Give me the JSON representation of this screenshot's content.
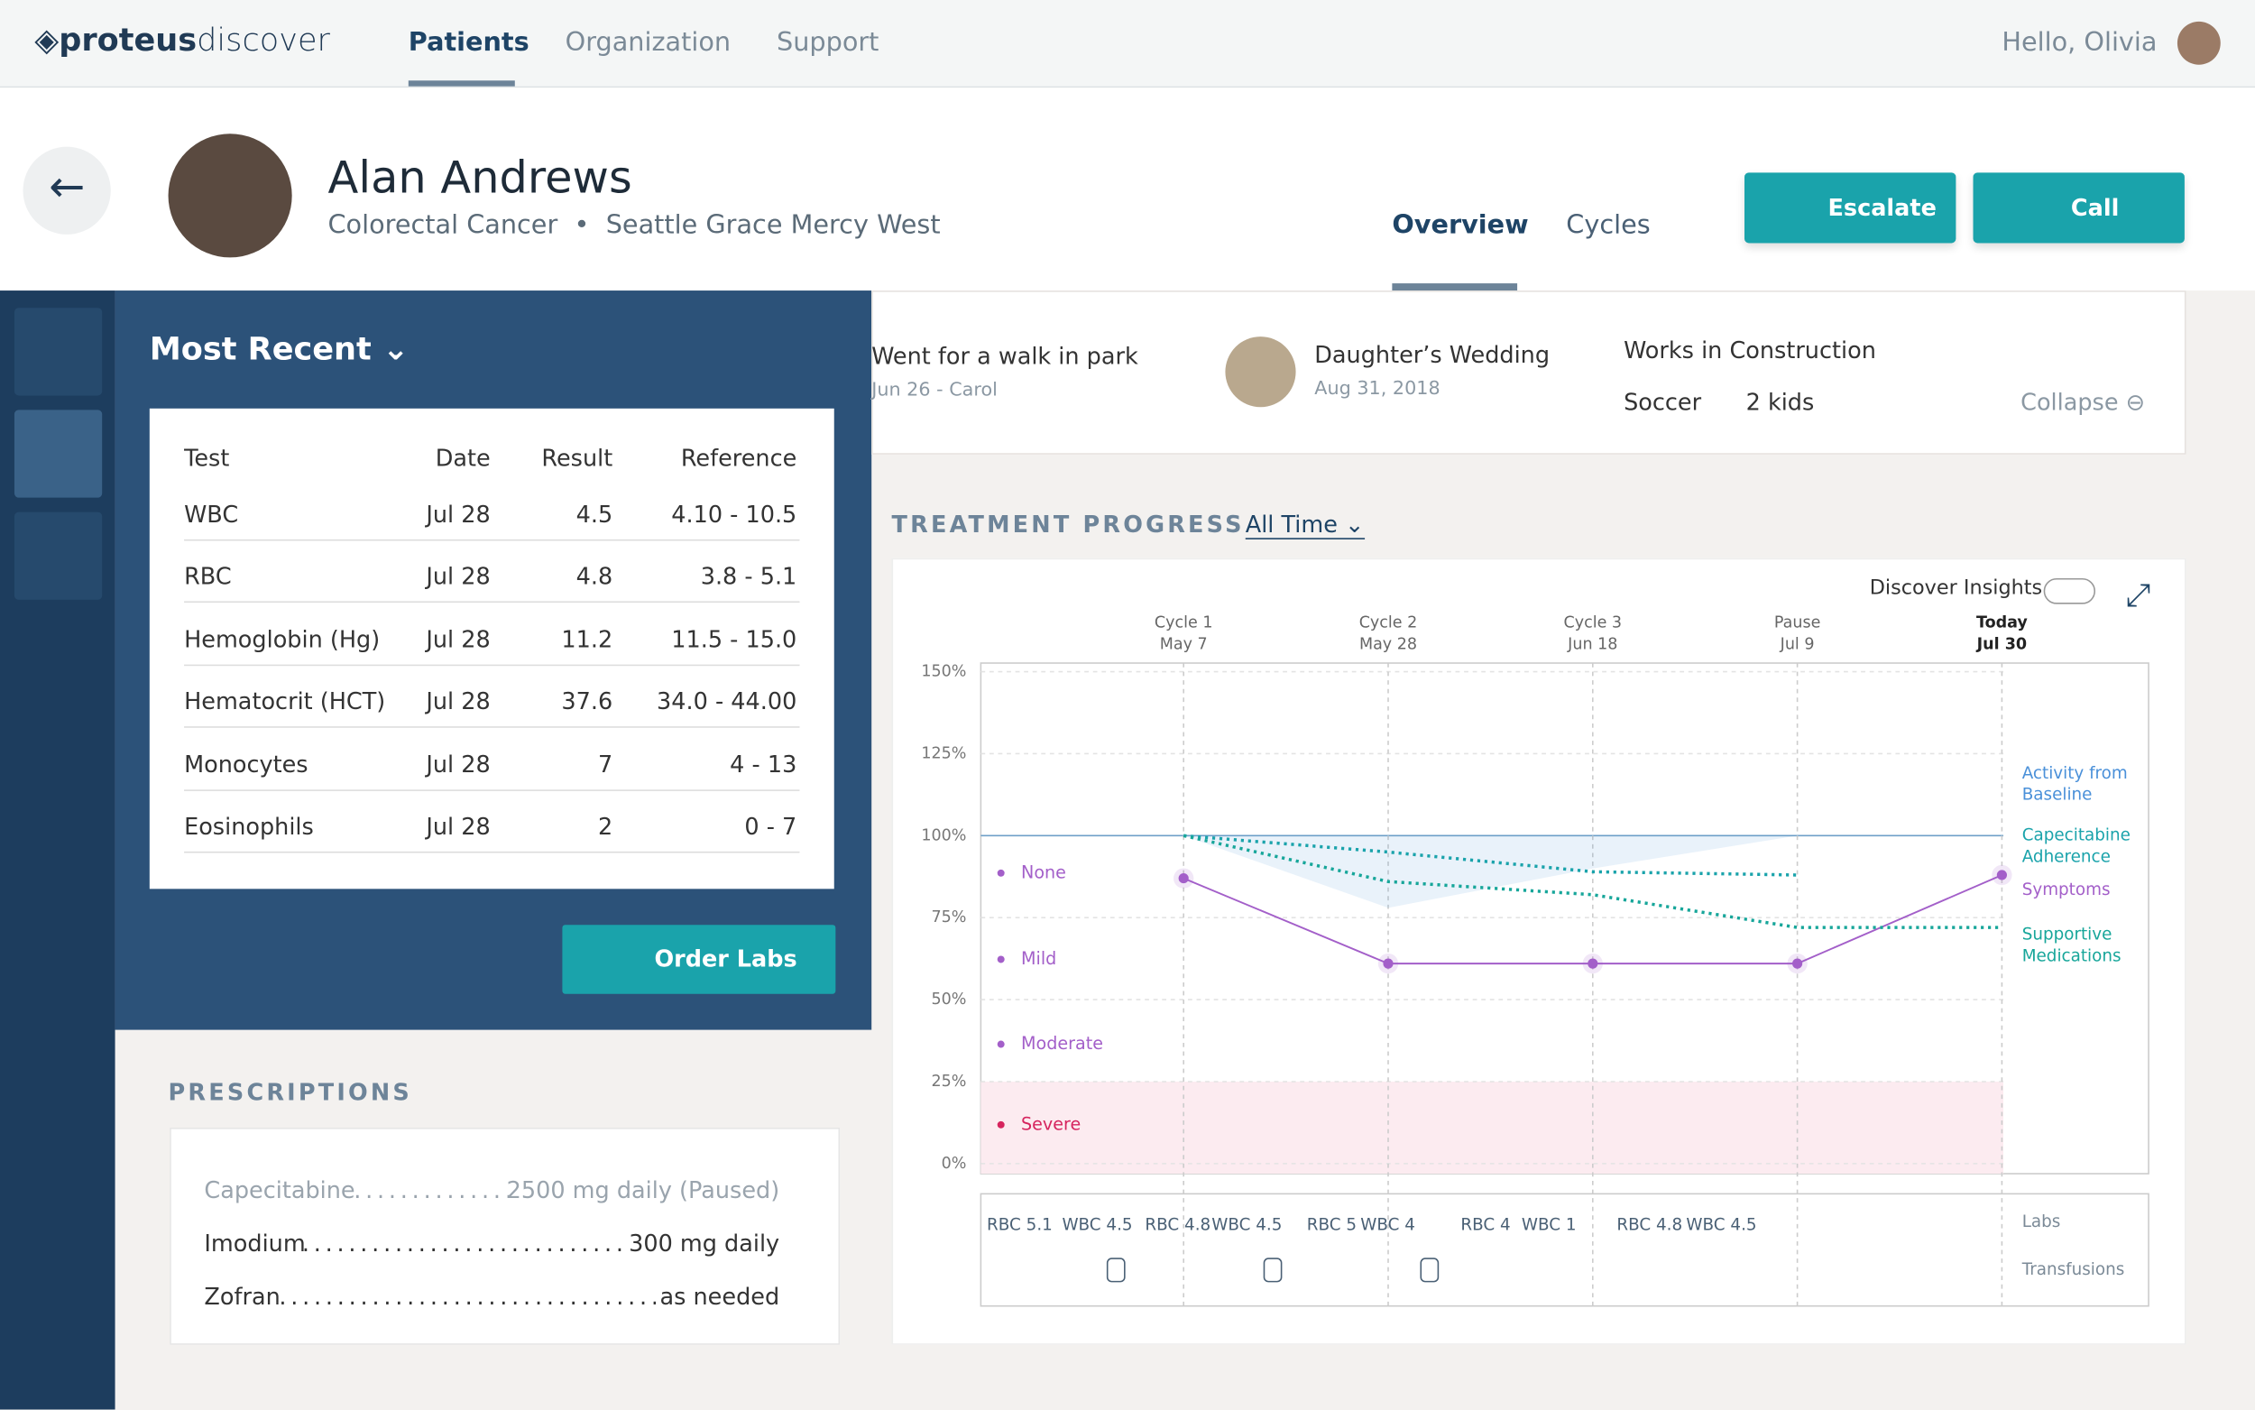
{
  "nav": {
    "brand_bold": "proteus",
    "brand_light": "discover",
    "links": [
      "Patients",
      "Organization",
      "Support"
    ],
    "greeting": "Hello, Olivia"
  },
  "patient": {
    "name": "Alan Andrews",
    "condition": "Colorectal Cancer",
    "location": "Seattle Grace Mercy West",
    "tabs": [
      "Overview",
      "Cycles"
    ],
    "actions": [
      "Escalate",
      "Call"
    ]
  },
  "labs": {
    "title": "Most Recent",
    "columns": [
      "Test",
      "Date",
      "Result",
      "Reference"
    ],
    "rows": [
      [
        "WBC",
        "Jul 28",
        "4.5",
        "4.10 - 10.5"
      ],
      [
        "RBC",
        "Jul 28",
        "4.8",
        "3.8 - 5.1"
      ],
      [
        "Hemoglobin (Hg)",
        "Jul 28",
        "11.2",
        "11.5 - 15.0"
      ],
      [
        "Hematocrit (HCT)",
        "Jul 28",
        "37.6",
        "34.0 - 44.00"
      ],
      [
        "Monocytes",
        "Jul 28",
        "7",
        "4 - 13"
      ],
      [
        "Eosinophils",
        "Jul 28",
        "2",
        "0 - 7"
      ]
    ],
    "button": "Order Labs"
  },
  "prescriptions": {
    "title": "PRESCRIPTIONS",
    "items": [
      {
        "name": "Capecitabine",
        "dose": "2500 mg daily (Paused)"
      },
      {
        "name": "Imodium",
        "dose": "300 mg daily"
      },
      {
        "name": "Zofran",
        "dose": "as needed"
      }
    ]
  },
  "notes": {
    "items": [
      {
        "text": "Went for a walk in park",
        "meta": "Jun 26 - Carol"
      },
      {
        "text": "Daughter’s Wedding",
        "meta": "Aug 31, 2018"
      }
    ],
    "work": "Works in Construction",
    "tags": [
      "Soccer",
      "2 kids"
    ],
    "collapse": "Collapse"
  },
  "treatment": {
    "title": "TREATMENT PROGRESS",
    "range": "All Time",
    "toggle": "Discover Insights",
    "cycles": [
      {
        "label": "Cycle 1",
        "date": "May 7"
      },
      {
        "label": "Cycle 2",
        "date": "May 28"
      },
      {
        "label": "Cycle 3",
        "date": "Jun 18"
      },
      {
        "label": "Pause",
        "date": "Jul 9"
      },
      {
        "label": "Today",
        "date": "Jul 30"
      }
    ],
    "ylim": [
      0,
      150
    ],
    "yticks": [
      {
        "value": 0,
        "label": "0%"
      },
      {
        "value": 25,
        "label": "25%"
      },
      {
        "value": 50,
        "label": "50%"
      },
      {
        "value": 75,
        "label": "75%"
      },
      {
        "value": 100,
        "label": "100%"
      },
      {
        "value": 125,
        "label": "125%"
      },
      {
        "value": 150,
        "label": "150%"
      }
    ],
    "severity": [
      "None",
      "Mild",
      "Moderate",
      "Severe"
    ],
    "series": [
      {
        "name": "Activity from Baseline",
        "color": "#4a90d9",
        "values": [
          100,
          78,
          90,
          100,
          100
        ]
      },
      {
        "name": "Capecitabine Adherence",
        "color": "#1aa3ab",
        "values": [
          100,
          95,
          89,
          88,
          null
        ]
      },
      {
        "name": "Symptoms",
        "color": "#a35fc9",
        "values": [
          87,
          61,
          61,
          61,
          88
        ]
      },
      {
        "name": "Supportive Medications",
        "color": "#17a69a",
        "values": [
          100,
          86,
          82,
          72,
          72
        ]
      }
    ],
    "lab_values": [
      "RBC 5.1",
      "WBC 4.5",
      "RBC 4.8",
      "WBC 4.5",
      "RBC 5",
      "WBC 4",
      "RBC 4",
      "WBC 1",
      "RBC 4.8",
      "WBC 4.5"
    ],
    "rows": [
      "Labs",
      "Transfusions"
    ]
  }
}
